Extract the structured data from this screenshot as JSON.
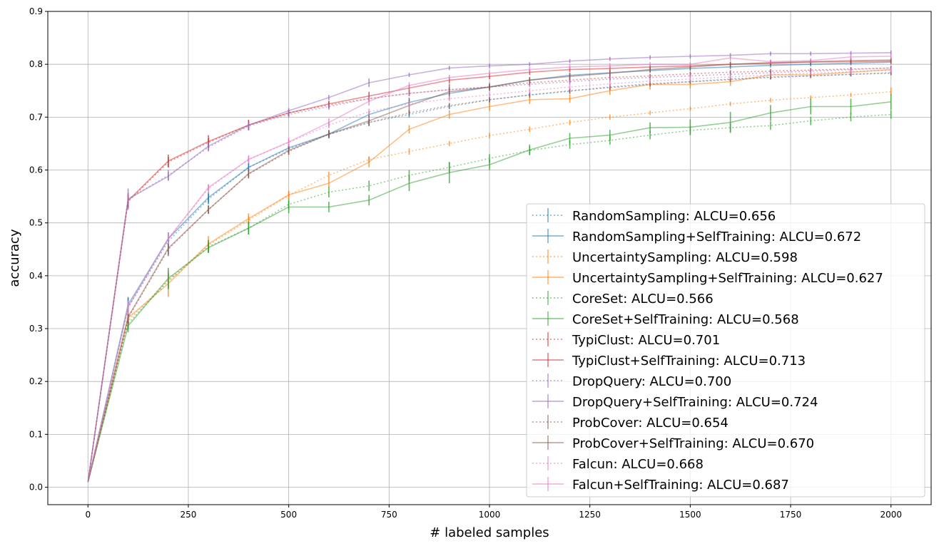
{
  "chart_data": {
    "type": "line",
    "title": "",
    "xlabel": "# labeled samples",
    "ylabel": "accuracy",
    "xlim": [
      -100,
      2100
    ],
    "ylim": [
      -0.033,
      0.9
    ],
    "xticks": [
      0,
      250,
      500,
      750,
      1000,
      1250,
      1500,
      1750,
      2000
    ],
    "xtick_labels": [
      "0",
      "250",
      "500",
      "750",
      "1000",
      "1250",
      "1500",
      "1750",
      "2000"
    ],
    "yticks": [
      0.0,
      0.1,
      0.2,
      0.3,
      0.4,
      0.5,
      0.6,
      0.7,
      0.8,
      0.9
    ],
    "ytick_labels": [
      "0.0",
      "0.1",
      "0.2",
      "0.3",
      "0.4",
      "0.5",
      "0.6",
      "0.7",
      "0.8",
      "0.9"
    ],
    "grid": true,
    "legend_position": "lower-right",
    "x": [
      0,
      100,
      200,
      300,
      400,
      500,
      600,
      700,
      800,
      900,
      1000,
      1100,
      1200,
      1300,
      1400,
      1500,
      1600,
      1700,
      1800,
      1900,
      2000
    ],
    "series": [
      {
        "name": "RandomSampling: ALCU=0.656",
        "color": "#1f77b4",
        "linestyle": "dotted",
        "values": [
          0.01,
          0.34,
          0.465,
          0.545,
          0.605,
          0.64,
          0.667,
          0.69,
          0.705,
          0.72,
          0.733,
          0.742,
          0.749,
          0.757,
          0.763,
          0.767,
          0.772,
          0.776,
          0.778,
          0.781,
          0.783
        ],
        "errors": [
          0,
          0.018,
          0.012,
          0.01,
          0.008,
          0.007,
          0.007,
          0.006,
          0.006,
          0.005,
          0.005,
          0.005,
          0.005,
          0.005,
          0.004,
          0.004,
          0.004,
          0.004,
          0.004,
          0.004,
          0.004
        ]
      },
      {
        "name": "RandomSampling+SelfTraining: ALCU=0.672",
        "color": "#1f77b4",
        "linestyle": "solid",
        "values": [
          0.01,
          0.345,
          0.47,
          0.548,
          0.605,
          0.642,
          0.668,
          0.705,
          0.728,
          0.745,
          0.757,
          0.77,
          0.779,
          0.784,
          0.788,
          0.792,
          0.795,
          0.798,
          0.8,
          0.802,
          0.804
        ],
        "errors": [
          0,
          0.015,
          0.012,
          0.01,
          0.008,
          0.007,
          0.007,
          0.006,
          0.006,
          0.005,
          0.005,
          0.005,
          0.005,
          0.005,
          0.004,
          0.004,
          0.004,
          0.004,
          0.004,
          0.004,
          0.004
        ]
      },
      {
        "name": "UncertaintySampling: ALCU=0.598",
        "color": "#ff7f0e",
        "linestyle": "dotted",
        "values": [
          0.01,
          0.315,
          0.392,
          0.458,
          0.505,
          0.552,
          0.59,
          0.62,
          0.635,
          0.65,
          0.665,
          0.677,
          0.69,
          0.7,
          0.708,
          0.716,
          0.725,
          0.732,
          0.737,
          0.742,
          0.748
        ],
        "errors": [
          0,
          0.015,
          0.012,
          0.01,
          0.008,
          0.007,
          0.007,
          0.006,
          0.006,
          0.005,
          0.005,
          0.005,
          0.005,
          0.005,
          0.004,
          0.004,
          0.004,
          0.004,
          0.004,
          0.004,
          0.008
        ]
      },
      {
        "name": "UncertaintySampling+SelfTraining: ALCU=0.627",
        "color": "#ff7f0e",
        "linestyle": "solid",
        "values": [
          0.01,
          0.32,
          0.385,
          0.46,
          0.508,
          0.553,
          0.575,
          0.615,
          0.677,
          0.705,
          0.72,
          0.733,
          0.735,
          0.75,
          0.762,
          0.762,
          0.767,
          0.78,
          0.78,
          0.785,
          0.79
        ],
        "errors": [
          0,
          0.015,
          0.025,
          0.015,
          0.01,
          0.008,
          0.008,
          0.01,
          0.008,
          0.008,
          0.008,
          0.008,
          0.008,
          0.008,
          0.01,
          0.008,
          0.008,
          0.008,
          0.006,
          0.006,
          0.006
        ]
      },
      {
        "name": "CoreSet: ALCU=0.566",
        "color": "#2ca02c",
        "linestyle": "dotted",
        "values": [
          0.01,
          0.31,
          0.39,
          0.455,
          0.49,
          0.535,
          0.558,
          0.57,
          0.59,
          0.605,
          0.622,
          0.637,
          0.648,
          0.656,
          0.666,
          0.675,
          0.68,
          0.684,
          0.693,
          0.7,
          0.705
        ],
        "errors": [
          0,
          0.012,
          0.015,
          0.012,
          0.012,
          0.01,
          0.01,
          0.01,
          0.01,
          0.01,
          0.008,
          0.008,
          0.008,
          0.008,
          0.008,
          0.008,
          0.008,
          0.008,
          0.008,
          0.008,
          0.008
        ]
      },
      {
        "name": "CoreSet+SelfTraining: ALCU=0.568",
        "color": "#2ca02c",
        "linestyle": "solid",
        "values": [
          0.01,
          0.305,
          0.395,
          0.453,
          0.49,
          0.53,
          0.53,
          0.543,
          0.575,
          0.595,
          0.61,
          0.638,
          0.66,
          0.666,
          0.68,
          0.681,
          0.69,
          0.708,
          0.72,
          0.72,
          0.729
        ],
        "errors": [
          0,
          0.012,
          0.02,
          0.01,
          0.012,
          0.012,
          0.01,
          0.01,
          0.015,
          0.02,
          0.01,
          0.01,
          0.01,
          0.01,
          0.01,
          0.015,
          0.02,
          0.015,
          0.015,
          0.015,
          0.015
        ]
      },
      {
        "name": "TypiClust: ALCU=0.701",
        "color": "#d62728",
        "linestyle": "dotted",
        "values": [
          0.01,
          0.54,
          0.615,
          0.652,
          0.685,
          0.708,
          0.723,
          0.735,
          0.745,
          0.752,
          0.757,
          0.765,
          0.77,
          0.775,
          0.778,
          0.782,
          0.785,
          0.787,
          0.789,
          0.791,
          0.793
        ],
        "errors": [
          0,
          0.012,
          0.01,
          0.008,
          0.008,
          0.006,
          0.006,
          0.006,
          0.005,
          0.005,
          0.005,
          0.005,
          0.005,
          0.005,
          0.004,
          0.004,
          0.004,
          0.004,
          0.004,
          0.004,
          0.004
        ]
      },
      {
        "name": "TypiClust+SelfTraining: ALCU=0.713",
        "color": "#d62728",
        "linestyle": "solid",
        "values": [
          0.01,
          0.542,
          0.617,
          0.654,
          0.685,
          0.708,
          0.725,
          0.74,
          0.755,
          0.77,
          0.777,
          0.785,
          0.79,
          0.792,
          0.795,
          0.797,
          0.8,
          0.802,
          0.804,
          0.805,
          0.806
        ],
        "errors": [
          0,
          0.012,
          0.012,
          0.012,
          0.01,
          0.006,
          0.006,
          0.008,
          0.006,
          0.006,
          0.005,
          0.005,
          0.005,
          0.005,
          0.004,
          0.004,
          0.004,
          0.004,
          0.004,
          0.004,
          0.004
        ]
      },
      {
        "name": "DropQuery: ALCU=0.700",
        "color": "#9467bd",
        "linestyle": "dotted",
        "values": [
          0.01,
          0.545,
          0.59,
          0.643,
          0.683,
          0.705,
          0.72,
          0.735,
          0.745,
          0.752,
          0.757,
          0.762,
          0.767,
          0.772,
          0.775,
          0.778,
          0.781,
          0.784,
          0.787,
          0.79,
          0.793
        ],
        "errors": [
          0,
          0.012,
          0.01,
          0.008,
          0.008,
          0.006,
          0.006,
          0.006,
          0.005,
          0.005,
          0.005,
          0.005,
          0.005,
          0.005,
          0.004,
          0.004,
          0.004,
          0.004,
          0.004,
          0.004,
          0.004
        ]
      },
      {
        "name": "DropQuery+SelfTraining: ALCU=0.724",
        "color": "#9467bd",
        "linestyle": "solid",
        "values": [
          0.01,
          0.545,
          0.588,
          0.645,
          0.685,
          0.712,
          0.737,
          0.765,
          0.78,
          0.793,
          0.797,
          0.8,
          0.806,
          0.81,
          0.813,
          0.815,
          0.817,
          0.82,
          0.82,
          0.821,
          0.822
        ],
        "errors": [
          0,
          0.02,
          0.008,
          0.008,
          0.006,
          0.005,
          0.005,
          0.008,
          0.004,
          0.004,
          0.004,
          0.004,
          0.004,
          0.004,
          0.004,
          0.004,
          0.004,
          0.004,
          0.004,
          0.004,
          0.004
        ]
      },
      {
        "name": "ProbCover: ALCU=0.654",
        "color": "#8c564b",
        "linestyle": "dotted",
        "values": [
          0.01,
          0.32,
          0.45,
          0.525,
          0.592,
          0.635,
          0.668,
          0.69,
          0.708,
          0.722,
          0.733,
          0.742,
          0.75,
          0.756,
          0.762,
          0.767,
          0.771,
          0.775,
          0.778,
          0.781,
          0.784
        ],
        "errors": [
          0,
          0.012,
          0.01,
          0.008,
          0.008,
          0.006,
          0.006,
          0.006,
          0.005,
          0.005,
          0.005,
          0.005,
          0.005,
          0.005,
          0.004,
          0.004,
          0.004,
          0.004,
          0.004,
          0.004,
          0.004
        ]
      },
      {
        "name": "ProbCover+SelfTraining: ALCU=0.670",
        "color": "#8c564b",
        "linestyle": "solid",
        "values": [
          0.01,
          0.322,
          0.452,
          0.525,
          0.593,
          0.637,
          0.668,
          0.693,
          0.722,
          0.748,
          0.757,
          0.77,
          0.777,
          0.783,
          0.79,
          0.795,
          0.8,
          0.803,
          0.805,
          0.807,
          0.808
        ],
        "errors": [
          0,
          0.012,
          0.015,
          0.008,
          0.008,
          0.008,
          0.008,
          0.01,
          0.015,
          0.015,
          0.008,
          0.006,
          0.006,
          0.006,
          0.005,
          0.005,
          0.005,
          0.005,
          0.005,
          0.005,
          0.005
        ]
      },
      {
        "name": "Falcun: ALCU=0.668",
        "color": "#e377c2",
        "linestyle": "dotted",
        "values": [
          0.01,
          0.34,
          0.47,
          0.565,
          0.62,
          0.652,
          0.685,
          0.71,
          0.725,
          0.735,
          0.742,
          0.75,
          0.757,
          0.763,
          0.768,
          0.772,
          0.776,
          0.78,
          0.783,
          0.786,
          0.789
        ],
        "errors": [
          0,
          0.012,
          0.01,
          0.008,
          0.008,
          0.006,
          0.006,
          0.006,
          0.005,
          0.005,
          0.005,
          0.005,
          0.005,
          0.005,
          0.004,
          0.004,
          0.004,
          0.004,
          0.004,
          0.004,
          0.004
        ]
      },
      {
        "name": "Falcun+SelfTraining: ALCU=0.687",
        "color": "#e377c2",
        "linestyle": "solid",
        "values": [
          0.01,
          0.34,
          0.47,
          0.567,
          0.62,
          0.653,
          0.69,
          0.73,
          0.76,
          0.775,
          0.783,
          0.79,
          0.795,
          0.797,
          0.8,
          0.8,
          0.812,
          0.805,
          0.807,
          0.814,
          0.815
        ],
        "errors": [
          0,
          0.012,
          0.01,
          0.006,
          0.006,
          0.008,
          0.008,
          0.008,
          0.006,
          0.005,
          0.005,
          0.005,
          0.005,
          0.005,
          0.004,
          0.004,
          0.006,
          0.004,
          0.004,
          0.004,
          0.004
        ]
      }
    ]
  }
}
